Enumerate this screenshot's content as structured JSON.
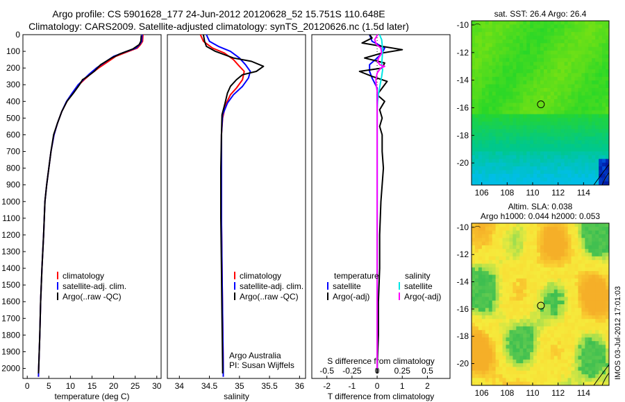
{
  "title_line1": "Argo profile: CS 5901628_177 24-Jun-2012 20120628_52 15.751S 110.648E",
  "title_line2": "Climatology: CARS2009. Satellite-adjusted climatology: synTS_20120626.nc (1.5d later)",
  "footer_stamp": "IMOS 03-Jul-2012 17:01:03",
  "colors": {
    "climatology": "#ff0000",
    "satellite": "#0000ff",
    "argo": "#000000",
    "sat_salinity": "#00e5e5",
    "argo_salinity": "#ff00ff"
  },
  "chart_data": [
    {
      "type": "line",
      "panel": "temperature",
      "xlabel": "temperature (deg C)",
      "xlim": [
        -1,
        31
      ],
      "xticks": [
        0,
        5,
        10,
        15,
        20,
        25,
        30
      ],
      "ylim": [
        2060,
        0
      ],
      "yticks": [
        0,
        100,
        200,
        300,
        400,
        500,
        600,
        700,
        800,
        900,
        1000,
        1100,
        1200,
        1300,
        1400,
        1500,
        1600,
        1700,
        1800,
        1900,
        2000
      ],
      "legend": [
        "climatology",
        "satellite-adj. clim.",
        "Argo(..raw -QC)"
      ],
      "series": [
        {
          "name": "climatology",
          "points": [
            [
              26.8,
              0
            ],
            [
              26.7,
              40
            ],
            [
              26.2,
              60
            ],
            [
              25.5,
              80
            ],
            [
              22.5,
              110
            ],
            [
              20.5,
              130
            ],
            [
              18.8,
              160
            ],
            [
              16.5,
              200
            ],
            [
              14.5,
              240
            ],
            [
              13.2,
              270
            ],
            [
              12.0,
              300
            ],
            [
              10.5,
              350
            ],
            [
              9.2,
              400
            ],
            [
              8.0,
              460
            ],
            [
              7.0,
              530
            ],
            [
              6.2,
              600
            ],
            [
              5.5,
              700
            ],
            [
              5.0,
              800
            ],
            [
              4.5,
              900
            ],
            [
              4.1,
              1000
            ],
            [
              3.8,
              1200
            ],
            [
              3.4,
              1400
            ],
            [
              3.1,
              1600
            ],
            [
              2.9,
              1800
            ],
            [
              2.65,
              2000
            ],
            [
              2.6,
              2050
            ]
          ]
        },
        {
          "name": "satellite-adj. clim.",
          "points": [
            [
              26.6,
              0
            ],
            [
              26.5,
              40
            ],
            [
              26.0,
              60
            ],
            [
              25.2,
              80
            ],
            [
              22.0,
              110
            ],
            [
              20.0,
              130
            ],
            [
              18.3,
              160
            ],
            [
              16.0,
              200
            ],
            [
              14.2,
              240
            ],
            [
              13.0,
              270
            ],
            [
              11.8,
              300
            ],
            [
              10.4,
              350
            ],
            [
              9.1,
              400
            ],
            [
              8.0,
              460
            ],
            [
              7.0,
              530
            ],
            [
              6.2,
              600
            ],
            [
              5.5,
              700
            ],
            [
              5.0,
              800
            ],
            [
              4.5,
              900
            ],
            [
              4.1,
              1000
            ],
            [
              3.8,
              1200
            ],
            [
              3.4,
              1400
            ],
            [
              3.1,
              1600
            ],
            [
              2.9,
              1800
            ],
            [
              2.65,
              2000
            ],
            [
              2.6,
              2050
            ]
          ]
        },
        {
          "name": "Argo(..raw -QC)",
          "points": [
            [
              26.4,
              5
            ],
            [
              26.3,
              40
            ],
            [
              25.9,
              60
            ],
            [
              24.5,
              85
            ],
            [
              21.5,
              115
            ],
            [
              19.5,
              140
            ],
            [
              17.0,
              180
            ],
            [
              15.5,
              220
            ],
            [
              14.0,
              250
            ],
            [
              12.8,
              270
            ],
            [
              12.1,
              300
            ],
            [
              10.7,
              350
            ],
            [
              9.2,
              400
            ],
            [
              8.0,
              460
            ],
            [
              7.0,
              530
            ],
            [
              6.1,
              600
            ],
            [
              5.5,
              700
            ],
            [
              5.0,
              800
            ],
            [
              4.5,
              900
            ],
            [
              4.1,
              1000
            ],
            [
              3.8,
              1200
            ],
            [
              3.4,
              1400
            ],
            [
              3.1,
              1600
            ],
            [
              2.9,
              1800
            ],
            [
              2.65,
              2000
            ],
            [
              2.6,
              2030
            ]
          ]
        }
      ]
    },
    {
      "type": "line",
      "panel": "salinity",
      "xlabel": "salinity",
      "xlim": [
        33.8,
        36.1
      ],
      "xticks": [
        34,
        34.5,
        35,
        35.5,
        36
      ],
      "ylim": [
        2060,
        0
      ],
      "legend": [
        "climatology",
        "satellite-adj. clim.",
        "Argo(..raw -QC)"
      ],
      "annotation": [
        "Argo Australia",
        "PI: Susan Wijffels"
      ],
      "series": [
        {
          "name": "climatology",
          "points": [
            [
              34.35,
              0
            ],
            [
              34.4,
              40
            ],
            [
              34.55,
              80
            ],
            [
              34.75,
              110
            ],
            [
              34.9,
              150
            ],
            [
              35.0,
              190
            ],
            [
              35.08,
              220
            ],
            [
              35.05,
              270
            ],
            [
              34.95,
              320
            ],
            [
              34.85,
              360
            ],
            [
              34.77,
              420
            ],
            [
              34.72,
              500
            ],
            [
              34.7,
              600
            ],
            [
              34.7,
              800
            ],
            [
              34.7,
              1100
            ],
            [
              34.71,
              1400
            ],
            [
              34.72,
              1700
            ],
            [
              34.73,
              2000
            ],
            [
              34.73,
              2050
            ]
          ]
        },
        {
          "name": "satellite-adj. clim.",
          "points": [
            [
              34.45,
              0
            ],
            [
              34.5,
              40
            ],
            [
              34.65,
              70
            ],
            [
              34.85,
              100
            ],
            [
              35.0,
              140
            ],
            [
              35.1,
              180
            ],
            [
              35.18,
              220
            ],
            [
              35.15,
              260
            ],
            [
              35.05,
              310
            ],
            [
              34.9,
              360
            ],
            [
              34.8,
              410
            ],
            [
              34.72,
              480
            ],
            [
              34.7,
              600
            ],
            [
              34.7,
              800
            ],
            [
              34.7,
              1100
            ],
            [
              34.71,
              1400
            ],
            [
              34.72,
              1700
            ],
            [
              34.73,
              2000
            ],
            [
              34.73,
              2050
            ]
          ]
        },
        {
          "name": "Argo(..raw -QC)",
          "points": [
            [
              34.4,
              0
            ],
            [
              34.42,
              40
            ],
            [
              34.45,
              70
            ],
            [
              34.6,
              100
            ],
            [
              34.9,
              140
            ],
            [
              35.2,
              160
            ],
            [
              35.4,
              190
            ],
            [
              35.28,
              220
            ],
            [
              35.05,
              240
            ],
            [
              34.95,
              270
            ],
            [
              34.85,
              310
            ],
            [
              34.8,
              350
            ],
            [
              34.76,
              410
            ],
            [
              34.71,
              480
            ],
            [
              34.7,
              600
            ],
            [
              34.69,
              800
            ],
            [
              34.69,
              1100
            ],
            [
              34.7,
              1400
            ],
            [
              34.71,
              1700
            ],
            [
              34.72,
              2000
            ],
            [
              34.72,
              2030
            ]
          ]
        }
      ]
    },
    {
      "type": "line",
      "panel": "difference",
      "xlabel": "T difference from climatology",
      "xlim": [
        -2.6,
        2.9
      ],
      "xticks": [
        -2,
        -1,
        0,
        1,
        2
      ],
      "s_axis_label": "S difference from climatology",
      "s_ticks": [
        "-0.5",
        "-0.25",
        "0",
        "0.25",
        "0.5"
      ],
      "s_per_t": 0.25,
      "ylim": [
        2060,
        0
      ],
      "legend": [
        "temperature",
        "satellite",
        "Argo(-adj)",
        "salinity",
        "satellite",
        "Argo(-adj)"
      ],
      "series": [
        {
          "name": "temperature satellite",
          "points": [
            [
              -0.3,
              0
            ],
            [
              -0.2,
              40
            ],
            [
              0.3,
              80
            ],
            [
              0.2,
              110
            ],
            [
              0.0,
              140
            ],
            [
              -0.3,
              180
            ],
            [
              -0.3,
              220
            ],
            [
              -0.2,
              260
            ],
            [
              0.0,
              320
            ],
            [
              0.0,
              400
            ],
            [
              0.0,
              600
            ],
            [
              0.0,
              1000
            ],
            [
              0.0,
              1500
            ],
            [
              0.0,
              2000
            ]
          ]
        },
        {
          "name": "Argo(-adj) temperature",
          "points": [
            [
              -0.3,
              0
            ],
            [
              -0.2,
              20
            ],
            [
              -0.6,
              50
            ],
            [
              0.2,
              70
            ],
            [
              1.0,
              90
            ],
            [
              0.2,
              110
            ],
            [
              -0.5,
              140
            ],
            [
              0.3,
              170
            ],
            [
              0.2,
              200
            ],
            [
              -0.7,
              220
            ],
            [
              -0.2,
              250
            ],
            [
              0.4,
              280
            ],
            [
              0.2,
              320
            ],
            [
              0.0,
              360
            ],
            [
              0.3,
              400
            ],
            [
              0.1,
              450
            ],
            [
              0.2,
              500
            ],
            [
              0.1,
              550
            ],
            [
              0.2,
              600
            ],
            [
              0.2,
              700
            ],
            [
              0.25,
              800
            ],
            [
              0.2,
              900
            ],
            [
              0.15,
              1000
            ],
            [
              0.1,
              1200
            ],
            [
              0.1,
              1400
            ],
            [
              0.05,
              1600
            ],
            [
              0.05,
              1800
            ],
            [
              0.0,
              2000
            ],
            [
              0.0,
              2030
            ]
          ]
        },
        {
          "name": "salinity satellite",
          "points": [
            [
              0.1,
              0
            ],
            [
              0.15,
              20
            ],
            [
              0.18,
              30
            ],
            [
              0.2,
              60
            ],
            [
              0.22,
              100
            ],
            [
              0.2,
              140
            ],
            [
              0.18,
              180
            ],
            [
              0.22,
              210
            ],
            [
              0.18,
              250
            ],
            [
              0.12,
              300
            ],
            [
              0.06,
              350
            ],
            [
              0.02,
              400
            ],
            [
              0.0,
              450
            ],
            [
              0.0,
              600
            ],
            [
              0.0,
              1000
            ],
            [
              0.0,
              1500
            ],
            [
              0.0,
              2000
            ]
          ]
        },
        {
          "name": "salinity Argo(-adj)",
          "points": [
            [
              0.02,
              0
            ],
            [
              -0.1,
              30
            ],
            [
              -0.02,
              60
            ],
            [
              0.15,
              80
            ],
            [
              0.18,
              110
            ],
            [
              0.06,
              140
            ],
            [
              0.02,
              160
            ],
            [
              0.1,
              180
            ],
            [
              0.3,
              190
            ],
            [
              0.14,
              200
            ],
            [
              0.0,
              230
            ],
            [
              -0.05,
              270
            ],
            [
              -0.04,
              300
            ],
            [
              0.0,
              340
            ],
            [
              0.01,
              380
            ],
            [
              0.0,
              420
            ],
            [
              0.0,
              600
            ],
            [
              0.0,
              1000
            ],
            [
              0.0,
              1500
            ],
            [
              0.0,
              2000
            ]
          ]
        }
      ]
    },
    {
      "type": "heatmap",
      "panel": "sst_map",
      "title": "sat. SST: 26.4 Argo: 26.4",
      "xlim": [
        105.2,
        116
      ],
      "ylim": [
        -21.6,
        -9.7
      ],
      "xticks": [
        106,
        108,
        110,
        112,
        114
      ],
      "yticks": [
        -10,
        -12,
        -14,
        -16,
        -18,
        -20
      ],
      "argo_position": [
        110.648,
        -15.751
      ]
    },
    {
      "type": "heatmap",
      "panel": "sla_map",
      "title_line1": "Altim. SLA: 0.038",
      "title_line2": "Argo h1000: 0.044 h2000: 0.053",
      "xlim": [
        105.2,
        116
      ],
      "ylim": [
        -21.6,
        -9.7
      ],
      "xticks": [
        106,
        108,
        110,
        112,
        114
      ],
      "yticks": [
        -10,
        -12,
        -14,
        -16,
        -18,
        -20
      ],
      "argo_position": [
        110.648,
        -15.751
      ]
    }
  ]
}
